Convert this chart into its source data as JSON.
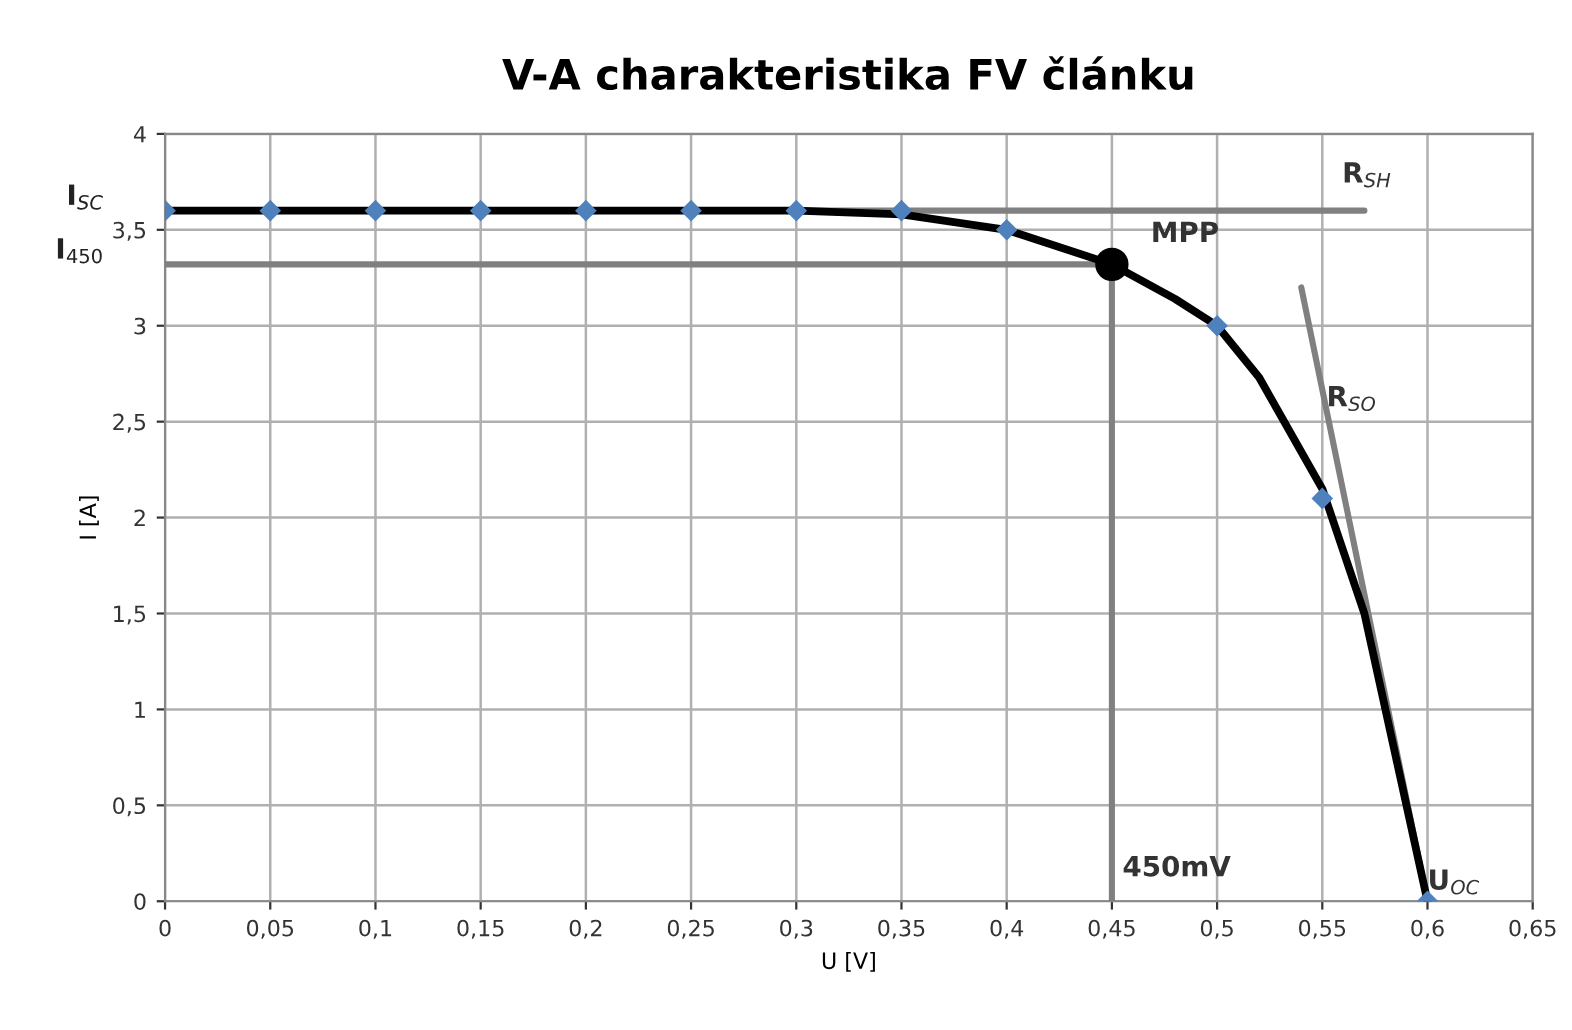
{
  "chart_data": {
    "type": "line",
    "title": "V-A charakteristika FV článku",
    "xlabel": "U [V]",
    "ylabel": "I [A]",
    "xlim": [
      0,
      0.65
    ],
    "ylim": [
      0,
      4
    ],
    "xticks": [
      0,
      {
        "value": 0.05,
        "label": "0,05"
      },
      {
        "value": 0.1,
        "label": "0,1"
      },
      {
        "value": 0.15,
        "label": "0,15"
      },
      {
        "value": 0.2,
        "label": "0,2"
      },
      {
        "value": 0.25,
        "label": "0,25"
      },
      {
        "value": 0.3,
        "label": "0,3"
      },
      {
        "value": 0.35,
        "label": "0,35"
      },
      {
        "value": 0.4,
        "label": "0,4"
      },
      {
        "value": 0.45,
        "label": "0,45"
      },
      {
        "value": 0.5,
        "label": "0,5"
      },
      {
        "value": 0.55,
        "label": "0,55"
      },
      {
        "value": 0.6,
        "label": "0,6"
      },
      {
        "value": 0.65,
        "label": "0,65"
      }
    ],
    "yticks": [
      0,
      {
        "value": 0.5,
        "label": "0,5"
      },
      1,
      {
        "value": 1.5,
        "label": "1,5"
      },
      2,
      {
        "value": 2.5,
        "label": "2,5"
      },
      3,
      {
        "value": 3.5,
        "label": "3,5"
      },
      4
    ],
    "grid": true,
    "series": [
      {
        "color": "#808080",
        "x": [
          0,
          0.57
        ],
        "values": [
          3.6,
          3.6
        ]
      },
      {
        "color": "#808080",
        "x": [
          0,
          0.45
        ],
        "values": [
          3.32,
          3.32
        ]
      },
      {
        "color": "#808080",
        "x": [
          0.45,
          0.45
        ],
        "values": [
          0,
          3.32
        ]
      },
      {
        "color": "#808080",
        "x": [
          0.54,
          0.6
        ],
        "values": [
          3.2,
          0
        ]
      },
      {
        "color": "#000000",
        "x": [
          0,
          0.05,
          0.1,
          0.15,
          0.2,
          0.25,
          0.3,
          0.35,
          0.4,
          0.45,
          0.48,
          0.5,
          0.52,
          0.55,
          0.57,
          0.6
        ],
        "values": [
          3.6,
          3.6,
          3.6,
          3.6,
          3.6,
          3.6,
          3.6,
          3.58,
          3.5,
          3.32,
          3.14,
          3.0,
          2.73,
          2.15,
          1.5,
          0
        ]
      },
      {
        "type": "scatter",
        "color": "#4f81bd",
        "marker": "diamond",
        "x": [
          0,
          0.05,
          0.1,
          0.15,
          0.2,
          0.25,
          0.3,
          0.35,
          0.4,
          0.45,
          0.5,
          0.55,
          0.6
        ],
        "values": [
          3.6,
          3.6,
          3.6,
          3.6,
          3.6,
          3.6,
          3.6,
          3.6,
          3.5,
          null,
          3.0,
          2.1,
          0
        ]
      },
      {
        "type": "scatter",
        "color": "#000000",
        "marker": "circle",
        "x": [
          0.45
        ],
        "values": [
          3.32
        ]
      }
    ],
    "annotations": [
      {
        "text": "I$_{SC}$",
        "x": 0,
        "y": 3.6
      },
      {
        "text": "I$_{450}$",
        "x": 0,
        "y": 3.32
      },
      {
        "text": "R$_{SH}$",
        "x": 0.57,
        "y": 3.6
      },
      {
        "text": "MPP",
        "x": 0.45,
        "y": 3.32
      },
      {
        "text": "R$_{SO}$",
        "x": 0.552,
        "y": 2.55
      },
      {
        "text": "450mV",
        "x": 0.455,
        "y": 0.1
      },
      {
        "text": "U$_{OC}$",
        "x": 0.6,
        "y": 0.03
      }
    ]
  }
}
